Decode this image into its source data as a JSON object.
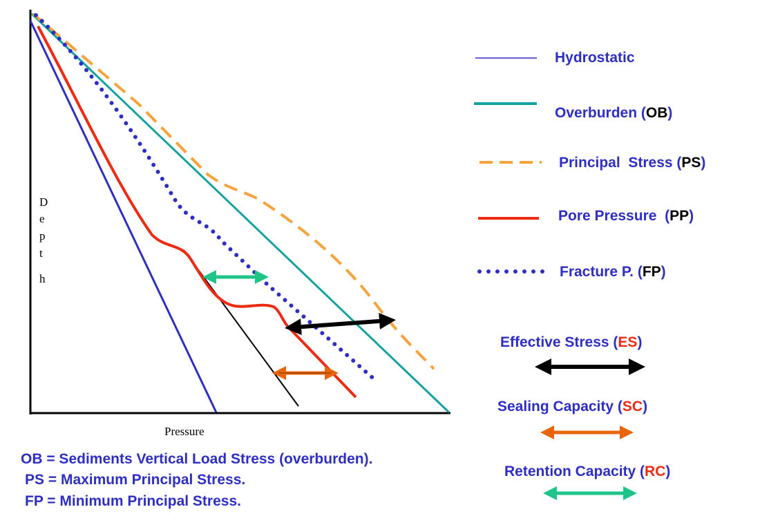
{
  "axes": {
    "x_title": "Pressure",
    "y_title": [
      "D",
      "e",
      "p",
      "t",
      "h"
    ]
  },
  "legend": {
    "hydrostatic": {
      "label": "Hydrostatic"
    },
    "overburden": {
      "label": "Overburden",
      "abbr": "OB"
    },
    "principal_stress": {
      "label": "Principal  Stress",
      "abbr": "PS"
    },
    "pore_pressure": {
      "label": "Pore Pressure",
      "abbr": "PP"
    },
    "fracture": {
      "label": "Fracture P.",
      "abbr": "FP"
    }
  },
  "arrow_legend": {
    "effective_stress": {
      "label": "Effective Stress",
      "abbr": "ES"
    },
    "sealing_capacity": {
      "label": "Sealing Capacity",
      "abbr": "SC"
    },
    "retention_capacity": {
      "label": "Retention Capacity",
      "abbr": "RC"
    }
  },
  "notes": [
    "OB = Sediments Vertical Load Stress (overburden).",
    "PS = Maximum Principal Stress.",
    "FP = Minimum Principal Stress."
  ],
  "colors": {
    "hydrostatic": "#2e2ec4",
    "overburden": "#13a1a1",
    "principal_stress": "#f6a33c",
    "pore_pressure": "#ee2b10",
    "fracture": "#2e2ec4",
    "effective_stress_arrow": "#000000",
    "sealing_capacity_arrow": "#e8650c",
    "retention_capacity_arrow": "#1ec48a",
    "label_text": "#2e2ec4",
    "abbr_red": "#ee2b10"
  }
}
